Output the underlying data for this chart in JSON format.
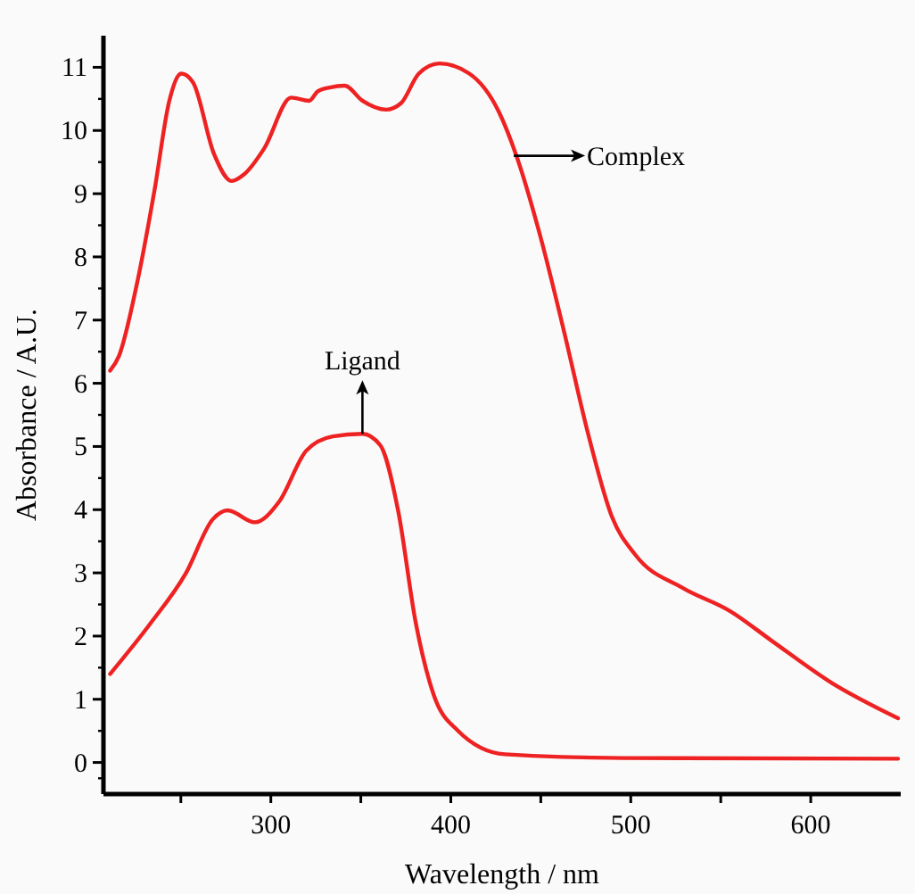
{
  "chart_data": {
    "type": "line",
    "xlabel": "Wavelength / nm",
    "ylabel": "Absorbance / A.U.",
    "xlim": [
      207,
      650
    ],
    "ylim": [
      -0.5,
      11.5
    ],
    "xticks": [
      {
        "value": 250,
        "label": null
      },
      300,
      {
        "value": 350,
        "label": null
      },
      400,
      {
        "value": 450,
        "label": null
      },
      500,
      {
        "value": 550,
        "label": null
      },
      600
    ],
    "yticks": [
      0,
      1,
      2,
      3,
      4,
      5,
      6,
      7,
      8,
      9,
      10,
      11
    ],
    "grid": false,
    "marker": "none",
    "line_style": "solid",
    "series": [
      {
        "color": "#ee2222",
        "x": [
          210.7,
          215.6,
          225.5,
          235.4,
          243.6,
          250.3,
          256.8,
          268.4,
          278.3,
          284.9,
          296.4,
          311.3,
          321.2,
          326.1,
          332.7,
          341,
          350.9,
          364,
          372.3,
          382.2,
          393.7,
          410.3,
          426.8,
          436.7,
          449.9,
          463,
          476.3,
          489.5,
          502.7,
          529,
          555.5,
          578.6,
          611.6,
          648.5
        ],
        "values": [
          6.2,
          6.43,
          7.56,
          9.06,
          10.47,
          10.9,
          10.76,
          9.63,
          9.2,
          9.3,
          9.72,
          10.52,
          10.47,
          10.62,
          10.68,
          10.71,
          10.47,
          10.33,
          10.43,
          10.9,
          11.06,
          10.9,
          10.29,
          9.58,
          8.31,
          6.81,
          5.2,
          3.89,
          3.28,
          2.76,
          2.39,
          1.92,
          1.26,
          0.7
        ]
      },
      {
        "color": "#ee2222",
        "x": [
          210.7,
          233.1,
          252.9,
          267.8,
          276,
          291,
          304.7,
          319.6,
          334.4,
          350.9,
          360.8,
          370.7,
          380.6,
          390.5,
          403.7,
          430,
          496,
          648.5
        ],
        "values": [
          1.4,
          2.2,
          3.0,
          3.85,
          3.99,
          3.8,
          4.13,
          4.93,
          5.16,
          5.2,
          5.02,
          3.99,
          2.2,
          1.07,
          0.51,
          0.13,
          0.07,
          0.06
        ]
      }
    ],
    "annotations": [
      {
        "text": "Complex",
        "x": 435,
        "y": 9.6
      },
      {
        "text": "Ligand",
        "x": 350.9,
        "y": 5.2
      }
    ]
  }
}
